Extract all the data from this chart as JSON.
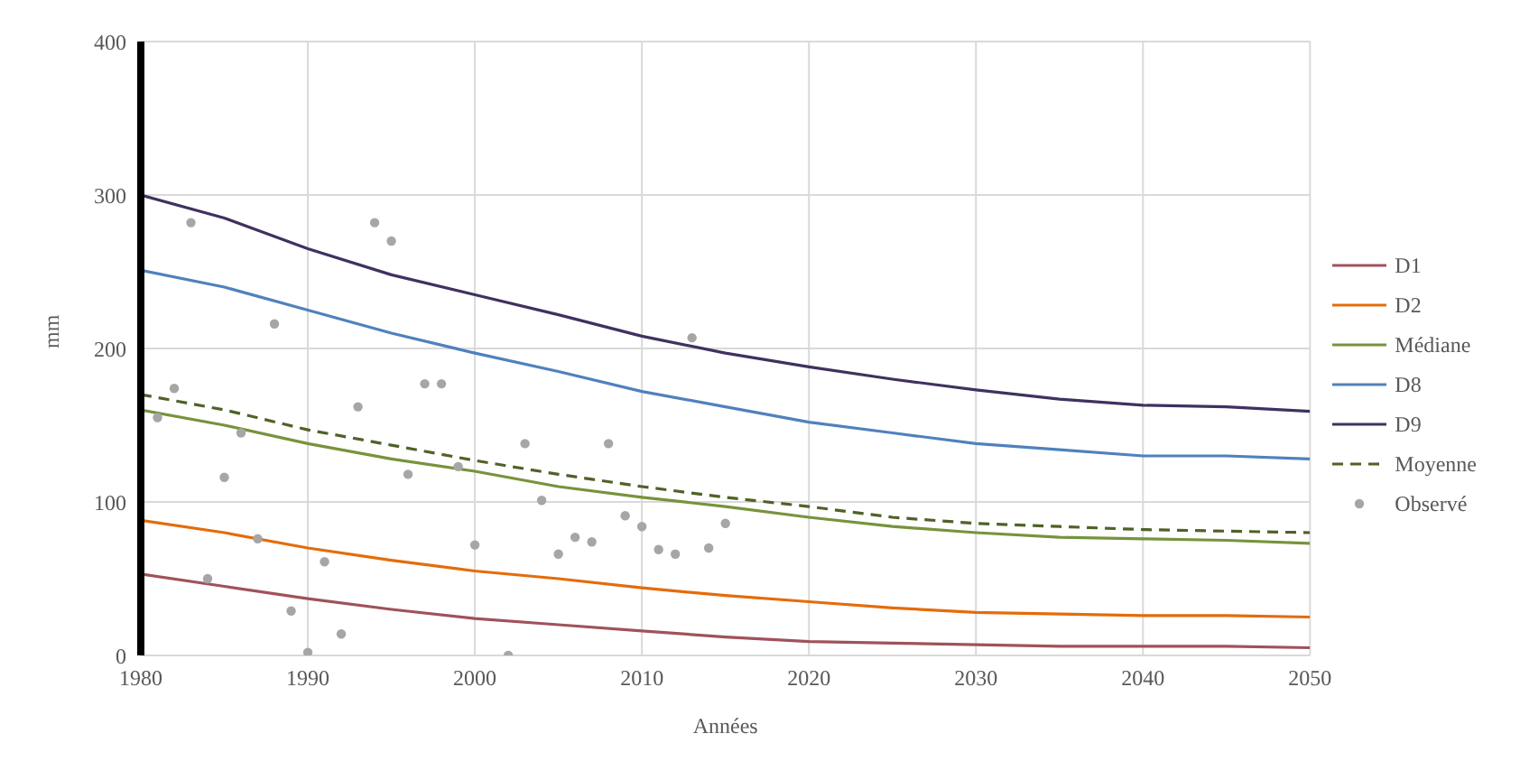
{
  "chart_data": {
    "type": "line",
    "xlabel": "Années",
    "ylabel": "mm",
    "x": [
      1980,
      1985,
      1990,
      1995,
      2000,
      2005,
      2010,
      2015,
      2020,
      2025,
      2030,
      2035,
      2040,
      2045,
      2050
    ],
    "series": [
      {
        "name": "D1",
        "color": "#a0525a",
        "values": [
          53,
          45,
          37,
          30,
          24,
          20,
          16,
          12,
          9,
          8,
          7,
          6,
          6,
          6,
          5
        ]
      },
      {
        "name": "D2",
        "color": "#e46c0a",
        "values": [
          88,
          80,
          70,
          62,
          55,
          50,
          44,
          39,
          35,
          31,
          28,
          27,
          26,
          26,
          25
        ]
      },
      {
        "name": "Médiane",
        "color": "#77933c",
        "values": [
          160,
          150,
          138,
          128,
          120,
          110,
          103,
          97,
          90,
          84,
          80,
          77,
          76,
          75,
          73
        ]
      },
      {
        "name": "D8",
        "color": "#4f81bd",
        "values": [
          251,
          240,
          225,
          210,
          197,
          185,
          172,
          162,
          152,
          145,
          138,
          134,
          130,
          130,
          128
        ]
      },
      {
        "name": "D9",
        "color": "#3f3160",
        "values": [
          300,
          285,
          265,
          248,
          235,
          222,
          208,
          197,
          188,
          180,
          173,
          167,
          163,
          162,
          159
        ]
      },
      {
        "name": "Moyenne",
        "color": "#4f6228",
        "line_style": "dashed",
        "values": [
          170,
          160,
          147,
          137,
          127,
          118,
          110,
          103,
          97,
          90,
          86,
          84,
          82,
          81,
          80
        ]
      },
      {
        "name": "Observé",
        "type": "scatter",
        "color": "#a6a6a6",
        "marker": "circle",
        "x": [
          1981,
          1982,
          1983,
          1984,
          1985,
          1986,
          1987,
          1988,
          1989,
          1990,
          1991,
          1992,
          1993,
          1994,
          1995,
          1996,
          1997,
          1998,
          1999,
          2000,
          2001,
          2002,
          2003,
          2004,
          2005,
          2006,
          2007,
          2008,
          2009,
          2010,
          2011,
          2012,
          2013,
          2014,
          2015
        ],
        "values": [
          155,
          174,
          282,
          50,
          116,
          145,
          76,
          216,
          29,
          2,
          61,
          14,
          162,
          282,
          270,
          118,
          177,
          177,
          123,
          72,
          null,
          0,
          138,
          101,
          66,
          77,
          74,
          138,
          91,
          84,
          69,
          66,
          207,
          70,
          86
        ]
      }
    ],
    "xlim": [
      1980,
      2050
    ],
    "xticks": [
      1980,
      1990,
      2000,
      2010,
      2020,
      2030,
      2040,
      2050
    ],
    "ylim": [
      0,
      400
    ],
    "yticks": [
      0,
      100,
      200,
      300,
      400
    ],
    "grid": true,
    "legend": "right",
    "marker": "none",
    "line_style": "solid"
  }
}
